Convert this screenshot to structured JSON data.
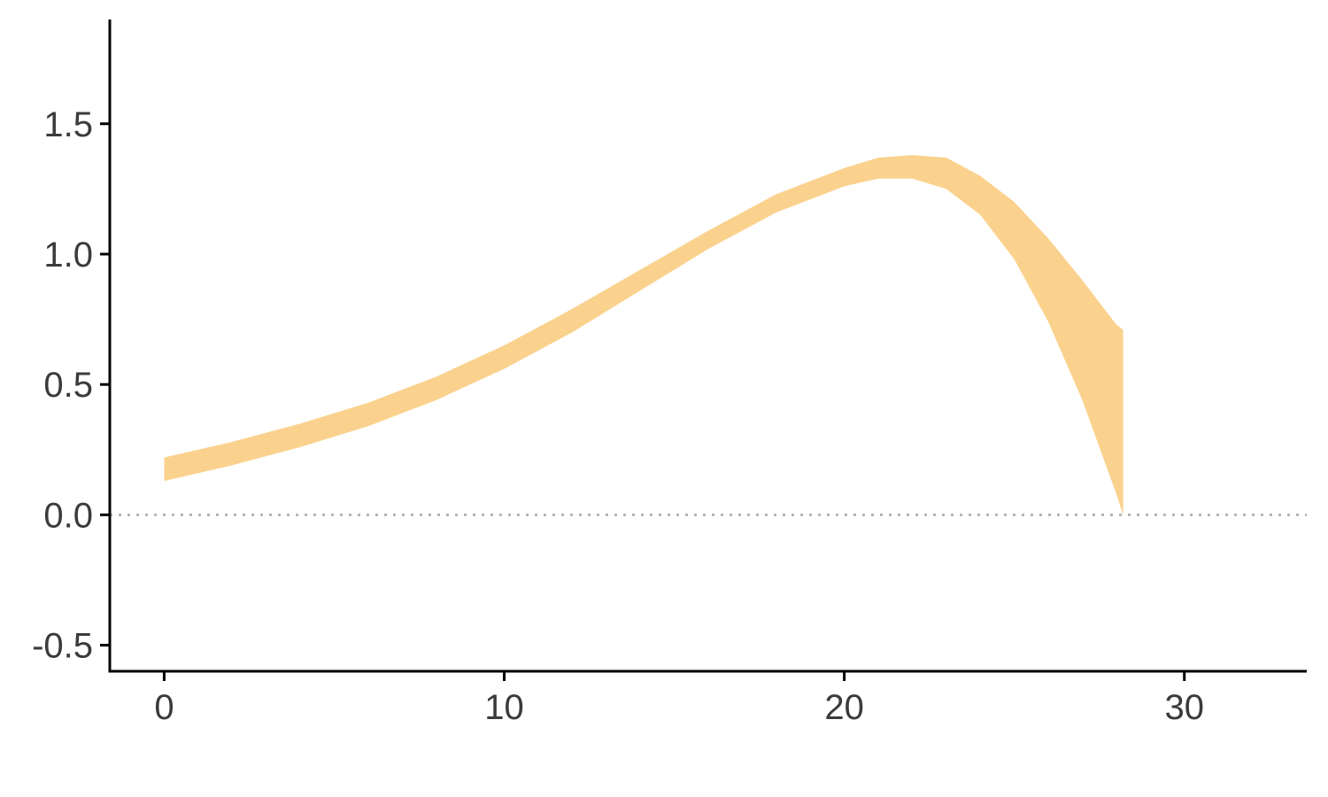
{
  "chart_data": {
    "type": "area",
    "title": "",
    "xlabel": "",
    "ylabel": "",
    "xlim": [
      -1.6,
      33.6
    ],
    "ylim": [
      -0.6,
      1.9
    ],
    "x_ticks": [
      {
        "value": 0,
        "label": "0"
      },
      {
        "value": 10,
        "label": "10"
      },
      {
        "value": 20,
        "label": "20"
      },
      {
        "value": 30,
        "label": "30"
      }
    ],
    "y_ticks": [
      {
        "value": -0.5,
        "label": "-0.5"
      },
      {
        "value": 0.0,
        "label": "0.0"
      },
      {
        "value": 0.5,
        "label": "0.5"
      },
      {
        "value": 1.0,
        "label": "1.0"
      },
      {
        "value": 1.5,
        "label": "1.5"
      }
    ],
    "reference_line": {
      "y": 0,
      "style": "dotted",
      "color": "#b3b3b3"
    },
    "grid": false,
    "legend": "none",
    "band_color": "#fad28e",
    "series": [
      {
        "x": [
          0,
          2,
          4,
          6,
          8,
          10,
          12,
          14,
          16,
          18,
          20,
          21,
          22,
          23,
          24,
          25,
          26,
          27,
          28,
          28.2
        ],
        "lower": [
          0.13,
          0.19,
          0.26,
          0.34,
          0.44,
          0.56,
          0.7,
          0.86,
          1.02,
          1.16,
          1.26,
          1.29,
          1.29,
          1.25,
          1.15,
          0.98,
          0.74,
          0.44,
          0.08,
          0.0
        ],
        "upper": [
          0.22,
          0.28,
          0.35,
          0.43,
          0.53,
          0.65,
          0.79,
          0.94,
          1.09,
          1.23,
          1.33,
          1.37,
          1.38,
          1.37,
          1.3,
          1.2,
          1.06,
          0.9,
          0.73,
          0.71
        ]
      }
    ]
  }
}
